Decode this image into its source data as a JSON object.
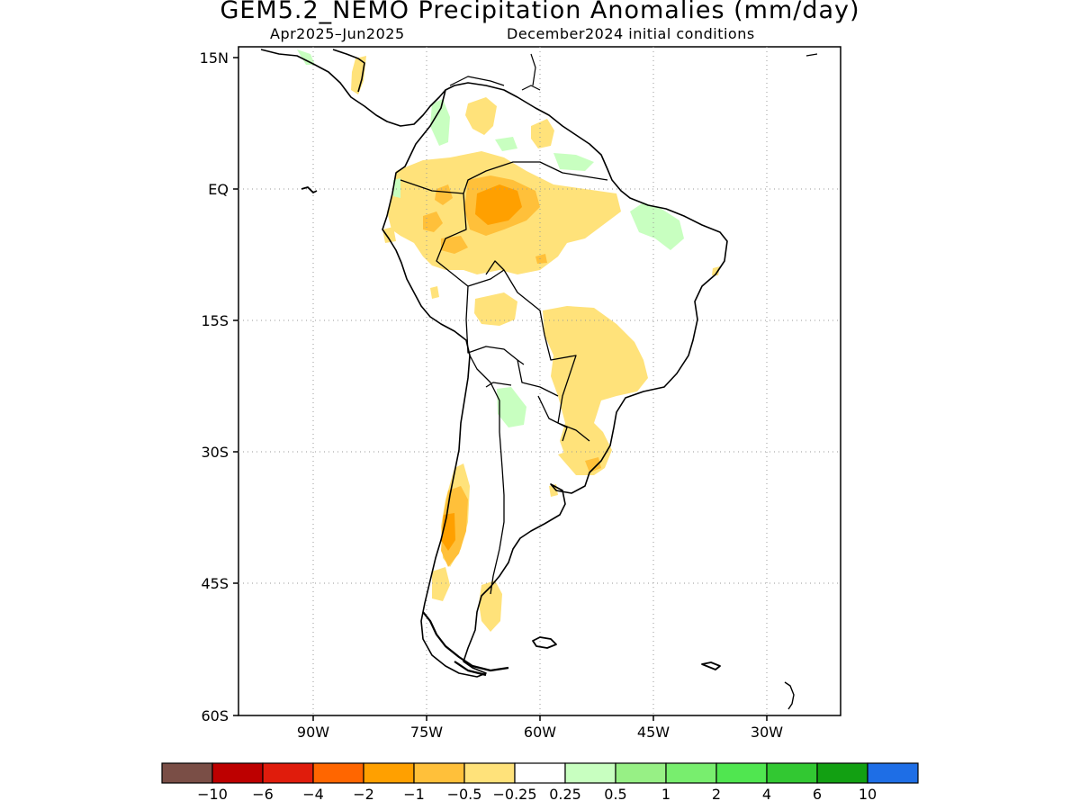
{
  "title": "GEM5.2_NEMO Precipitation Anomalies (mm/day)",
  "subtitle_left": "Apr2025–Jun2025",
  "subtitle_right": "December2024 initial conditions",
  "lat_labels": [
    "15N",
    "EQ",
    "15S",
    "30S",
    "45S",
    "60S"
  ],
  "lon_labels": [
    "90W",
    "75W",
    "60W",
    "45W",
    "30W"
  ],
  "colorbar": {
    "colors": [
      "#7a4e46",
      "#bd0000",
      "#e01c0c",
      "#ff6600",
      "#ffa000",
      "#ffc03a",
      "#ffe27a",
      "#ffffff",
      "#c8ffc0",
      "#97f085",
      "#78ee6e",
      "#50e650",
      "#32c832",
      "#12a012",
      "#1e6ee6"
    ],
    "labels": [
      "−10",
      "−6",
      "−4",
      "−2",
      "−1",
      "−0.5",
      "−0.25",
      "0.25",
      "0.5",
      "1",
      "2",
      "4",
      "6",
      "10"
    ]
  },
  "anomaly_colors": {
    "light_yellow": "#ffe27a",
    "orange": "#ffc03a",
    "dark_orange": "#ffa000",
    "light_green": "#c8ffc0"
  }
}
